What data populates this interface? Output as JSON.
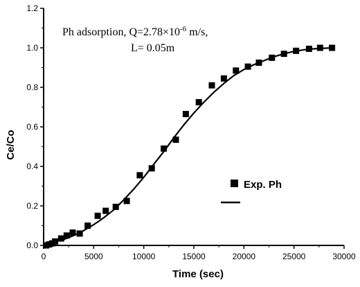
{
  "chart_data": {
    "type": "scatter",
    "xlabel": "Time (sec)",
    "ylabel": "Ce/Co",
    "xlim": [
      0,
      30000
    ],
    "ylim": [
      0,
      1.2
    ],
    "x_ticks": [
      0,
      5000,
      10000,
      15000,
      20000,
      25000,
      30000
    ],
    "y_ticks": [
      0.0,
      0.2,
      0.4,
      0.6,
      0.8,
      1.0,
      1.2
    ],
    "x_tick_labels": [
      "0",
      "5000",
      "10000",
      "15000",
      "20000",
      "25000",
      "30000"
    ],
    "y_tick_labels": [
      "0.0",
      "0.2",
      "0.4",
      "0.6",
      "0.8",
      "1.0",
      "1.2"
    ],
    "annotation": {
      "line1_main": "Ph adsorption, Q=2.78×10",
      "line1_sup": "-6",
      "line1_tail": " m/s,",
      "line2": "L= 0.05m"
    },
    "legend": {
      "position": "bottom-right",
      "entries": [
        {
          "label": "Exp. Ph",
          "marker": "square"
        },
        {
          "label": "",
          "marker": "line"
        }
      ]
    },
    "series": [
      {
        "name": "Exp. Ph",
        "kind": "points",
        "x": [
          250,
          550,
          850,
          1150,
          1750,
          2300,
          2900,
          3600,
          4400,
          5400,
          6200,
          7200,
          8300,
          9600,
          10800,
          12000,
          13200,
          14200,
          15500,
          16800,
          18000,
          19200,
          20400,
          21500,
          22800,
          24000,
          25200,
          26500,
          27600,
          28800
        ],
        "y": [
          0.0,
          0.005,
          0.01,
          0.02,
          0.035,
          0.05,
          0.065,
          0.06,
          0.1,
          0.15,
          0.175,
          0.195,
          0.225,
          0.355,
          0.39,
          0.49,
          0.535,
          0.665,
          0.725,
          0.81,
          0.845,
          0.885,
          0.905,
          0.925,
          0.95,
          0.97,
          0.985,
          0.995,
          1.0,
          1.0
        ]
      },
      {
        "kind": "line",
        "x": [
          0,
          1000,
          2000,
          3000,
          4000,
          5000,
          6000,
          7000,
          8000,
          9000,
          10000,
          11000,
          12000,
          13000,
          14000,
          15000,
          16000,
          17000,
          18000,
          19000,
          20000,
          21000,
          22000,
          23000,
          24000,
          25000,
          26000,
          27000,
          28000,
          28800
        ],
        "y": [
          0.0,
          0.015,
          0.03,
          0.05,
          0.075,
          0.105,
          0.14,
          0.18,
          0.23,
          0.285,
          0.345,
          0.41,
          0.475,
          0.545,
          0.61,
          0.67,
          0.725,
          0.775,
          0.82,
          0.86,
          0.89,
          0.915,
          0.935,
          0.955,
          0.97,
          0.982,
          0.99,
          0.995,
          0.998,
          1.0
        ]
      }
    ]
  }
}
